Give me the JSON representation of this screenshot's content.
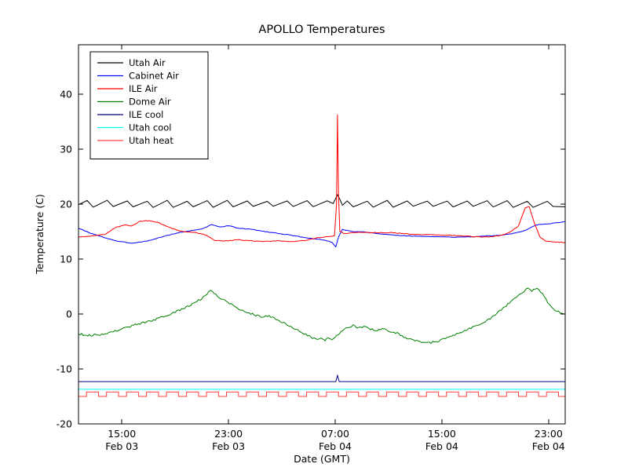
{
  "chart_data": {
    "type": "line",
    "title": "APOLLO Temperatures",
    "xlabel": "Date (GMT)",
    "ylabel": "Temperature (C)",
    "xlim": [
      0,
      36.5
    ],
    "ylim": [
      -20,
      49
    ],
    "yticks": [
      -20,
      -10,
      0,
      10,
      20,
      30,
      40
    ],
    "xticks": [
      {
        "x": 3.25,
        "time": "15:00",
        "date": "Feb 03"
      },
      {
        "x": 11.25,
        "time": "23:00",
        "date": "Feb 03"
      },
      {
        "x": 19.25,
        "time": "07:00",
        "date": "Feb 04"
      },
      {
        "x": 27.25,
        "time": "15:00",
        "date": "Feb 04"
      },
      {
        "x": 35.25,
        "time": "23:00",
        "date": "Feb 04"
      }
    ],
    "legend_position": "upper-left",
    "grid": false,
    "series": [
      {
        "name": "Utah Air",
        "color": "#000000",
        "pattern": {
          "kind": "sawtooth",
          "period": 1.5,
          "rise": 1.05,
          "low": 19.5,
          "high": 20.6,
          "start": 0,
          "end": 36.5,
          "phase": 0.4
        },
        "noise": {
          "amp": 0.12,
          "seed": 5
        },
        "overlays": [
          [
            [
              19.1,
              20.1
            ],
            [
              19.42,
              21.7
            ],
            [
              19.6,
              20.9
            ],
            [
              19.8,
              19.8
            ]
          ]
        ]
      },
      {
        "name": "Cabinet Air",
        "color": "#0000ff",
        "points": [
          [
            0,
            15.6
          ],
          [
            0.8,
            14.8
          ],
          [
            1.8,
            14.0
          ],
          [
            3.0,
            13.2
          ],
          [
            4.0,
            12.9
          ],
          [
            5.2,
            13.3
          ],
          [
            6.5,
            14.2
          ],
          [
            7.5,
            14.8
          ],
          [
            8.5,
            15.2
          ],
          [
            9.3,
            15.5
          ],
          [
            10.0,
            16.3
          ],
          [
            10.6,
            15.8
          ],
          [
            11.2,
            16.1
          ],
          [
            12.0,
            15.6
          ],
          [
            13.0,
            15.4
          ],
          [
            14.0,
            15.0
          ],
          [
            15.5,
            14.5
          ],
          [
            17.0,
            13.9
          ],
          [
            18.3,
            13.5
          ],
          [
            19.0,
            13.1
          ],
          [
            19.3,
            12.2
          ],
          [
            19.5,
            14.0
          ],
          [
            19.8,
            15.4
          ],
          [
            20.5,
            15.0
          ],
          [
            21.5,
            14.9
          ],
          [
            22.5,
            14.6
          ],
          [
            24.0,
            14.3
          ],
          [
            26.0,
            14.1
          ],
          [
            28.0,
            14.0
          ],
          [
            30.0,
            14.1
          ],
          [
            31.5,
            14.3
          ],
          [
            32.5,
            14.6
          ],
          [
            33.5,
            15.2
          ],
          [
            34.3,
            16.2
          ],
          [
            35.2,
            16.4
          ],
          [
            36.5,
            16.8
          ]
        ],
        "noise": {
          "amp": 0.05,
          "seed": 3
        }
      },
      {
        "name": "ILE Air",
        "color": "#ff0000",
        "points": [
          [
            0,
            14.0
          ],
          [
            1.0,
            14.2
          ],
          [
            2.0,
            14.5
          ],
          [
            2.8,
            15.8
          ],
          [
            3.5,
            16.2
          ],
          [
            4.0,
            16.0
          ],
          [
            4.6,
            16.9
          ],
          [
            5.3,
            17.0
          ],
          [
            6.0,
            16.6
          ],
          [
            7.0,
            15.6
          ],
          [
            7.8,
            15.0
          ],
          [
            8.8,
            14.8
          ],
          [
            9.5,
            14.4
          ],
          [
            10.2,
            13.4
          ],
          [
            11.0,
            13.3
          ],
          [
            12.0,
            13.5
          ],
          [
            13.0,
            13.3
          ],
          [
            14.0,
            13.2
          ],
          [
            15.0,
            13.3
          ],
          [
            16.0,
            13.2
          ],
          [
            17.0,
            13.4
          ],
          [
            18.0,
            13.9
          ],
          [
            18.8,
            14.1
          ],
          [
            19.2,
            14.3
          ],
          [
            19.35,
            20.0
          ],
          [
            19.42,
            36.3
          ],
          [
            19.5,
            22.0
          ],
          [
            19.6,
            15.0
          ],
          [
            20.0,
            14.6
          ],
          [
            21.0,
            14.9
          ],
          [
            22.0,
            14.8
          ],
          [
            23.5,
            14.8
          ],
          [
            25.0,
            14.5
          ],
          [
            26.5,
            14.4
          ],
          [
            28.0,
            14.3
          ],
          [
            29.5,
            14.1
          ],
          [
            30.5,
            14.0
          ],
          [
            31.5,
            14.2
          ],
          [
            32.3,
            14.8
          ],
          [
            33.0,
            16.0
          ],
          [
            33.5,
            19.3
          ],
          [
            33.8,
            19.5
          ],
          [
            34.2,
            16.5
          ],
          [
            34.6,
            14.0
          ],
          [
            35.0,
            13.3
          ],
          [
            35.8,
            13.1
          ],
          [
            36.5,
            13.0
          ]
        ],
        "noise": {
          "amp": 0.06,
          "seed": 4
        }
      },
      {
        "name": "Dome Air",
        "color": "#007f00",
        "points": [
          [
            0,
            -3.6
          ],
          [
            0.7,
            -3.9
          ],
          [
            1.5,
            -3.8
          ],
          [
            2.5,
            -3.3
          ],
          [
            3.5,
            -2.5
          ],
          [
            4.5,
            -1.8
          ],
          [
            5.5,
            -1.2
          ],
          [
            6.5,
            -0.4
          ],
          [
            7.5,
            0.6
          ],
          [
            8.3,
            1.5
          ],
          [
            9.0,
            2.5
          ],
          [
            9.5,
            3.2
          ],
          [
            9.9,
            4.4
          ],
          [
            10.3,
            3.6
          ],
          [
            10.7,
            2.8
          ],
          [
            11.2,
            2.2
          ],
          [
            11.8,
            1.2
          ],
          [
            12.3,
            0.6
          ],
          [
            12.8,
            0.2
          ],
          [
            13.3,
            -0.2
          ],
          [
            13.8,
            -0.6
          ],
          [
            14.3,
            -0.3
          ],
          [
            14.8,
            -0.9
          ],
          [
            15.3,
            -1.5
          ],
          [
            15.8,
            -2.2
          ],
          [
            16.3,
            -2.8
          ],
          [
            16.8,
            -3.4
          ],
          [
            17.3,
            -4.0
          ],
          [
            17.8,
            -4.6
          ],
          [
            18.2,
            -4.2
          ],
          [
            18.5,
            -4.8
          ],
          [
            18.8,
            -4.3
          ],
          [
            19.1,
            -4.7
          ],
          [
            19.5,
            -3.6
          ],
          [
            19.8,
            -3.0
          ],
          [
            20.2,
            -2.4
          ],
          [
            20.6,
            -2.1
          ],
          [
            21.0,
            -2.6
          ],
          [
            21.4,
            -2.2
          ],
          [
            21.9,
            -2.7
          ],
          [
            22.4,
            -3.0
          ],
          [
            22.9,
            -2.6
          ],
          [
            23.4,
            -3.2
          ],
          [
            23.9,
            -3.5
          ],
          [
            24.4,
            -4.2
          ],
          [
            25.0,
            -4.6
          ],
          [
            25.6,
            -5.0
          ],
          [
            26.2,
            -5.3
          ],
          [
            26.8,
            -5.0
          ],
          [
            27.4,
            -4.6
          ],
          [
            28.0,
            -4.0
          ],
          [
            28.6,
            -3.4
          ],
          [
            29.2,
            -2.8
          ],
          [
            29.8,
            -2.2
          ],
          [
            30.4,
            -1.5
          ],
          [
            31.0,
            -0.6
          ],
          [
            31.6,
            0.6
          ],
          [
            32.2,
            1.8
          ],
          [
            32.8,
            3.0
          ],
          [
            33.3,
            4.0
          ],
          [
            33.7,
            4.6
          ],
          [
            34.0,
            4.2
          ],
          [
            34.4,
            4.8
          ],
          [
            34.8,
            3.6
          ],
          [
            35.2,
            2.0
          ],
          [
            35.6,
            1.0
          ],
          [
            36.0,
            0.4
          ],
          [
            36.5,
            0.0
          ]
        ],
        "noise": {
          "amp": 0.18,
          "seed": 9
        }
      },
      {
        "name": "ILE cool",
        "color": "#000080",
        "points": [
          [
            0,
            -12.3
          ],
          [
            19.3,
            -12.3
          ],
          [
            19.42,
            -11.2
          ],
          [
            19.55,
            -12.3
          ],
          [
            36.5,
            -12.3
          ]
        ],
        "noise": {
          "amp": 0,
          "seed": 1
        }
      },
      {
        "name": "Utah cool",
        "color": "#00ffff",
        "points": [
          [
            0,
            -13.7
          ],
          [
            36.5,
            -13.7
          ]
        ],
        "noise": {
          "amp": 0,
          "seed": 1
        }
      },
      {
        "name": "Utah heat",
        "color": "#ff4040",
        "pattern": {
          "kind": "square",
          "period": 1.5,
          "highFrac": 0.6,
          "high": -14.2,
          "low": -15.0,
          "start": 0,
          "end": 36.5,
          "firstLow": true
        },
        "noise": {
          "amp": 0,
          "seed": 1
        }
      }
    ]
  }
}
